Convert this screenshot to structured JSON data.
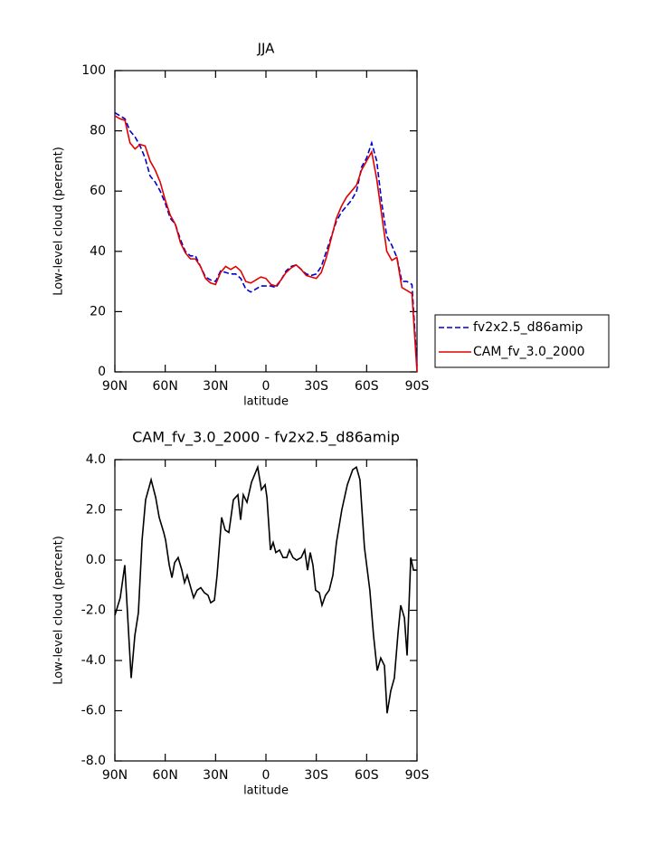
{
  "chart_data": [
    {
      "type": "line",
      "title": "JJA",
      "xlabel": "latitude",
      "ylabel": "Low-level cloud (percent)",
      "x": [
        90,
        87,
        84,
        81,
        78,
        75,
        72,
        69,
        66,
        63,
        60,
        57,
        54,
        51,
        48,
        45,
        42,
        39,
        36,
        33,
        30,
        27,
        24,
        21,
        18,
        15,
        12,
        9,
        6,
        3,
        0,
        -3,
        -6,
        -9,
        -12,
        -15,
        -18,
        -21,
        -24,
        -27,
        -30,
        -33,
        -36,
        -39,
        -42,
        -45,
        -48,
        -51,
        -54,
        -57,
        -60,
        -63,
        -66,
        -69,
        -72,
        -75,
        -78,
        -81,
        -84,
        -87,
        -90
      ],
      "series": [
        {
          "name": "fv2x2.5_d86amip",
          "color": "#0000cc",
          "linestyle": "dashed",
          "values": [
            86,
            85,
            84,
            80,
            78,
            75,
            71,
            65,
            63,
            60,
            56,
            51,
            49,
            44,
            40,
            38.5,
            38.5,
            35,
            31.5,
            30.5,
            30,
            33.5,
            33,
            32.5,
            32.5,
            31,
            27.5,
            26.5,
            27.5,
            28.5,
            28.5,
            28.5,
            28,
            30.5,
            33.5,
            35,
            35.5,
            34,
            32.5,
            32,
            32.5,
            35,
            40,
            45,
            50,
            53,
            55,
            57,
            60,
            68,
            71,
            76,
            70,
            56,
            45,
            42,
            38,
            30,
            30,
            29,
            2
          ]
        },
        {
          "name": "CAM_fv_3.0_2000",
          "color": "#e00000",
          "linestyle": "solid",
          "values": [
            85,
            84,
            83.5,
            76,
            74,
            75.5,
            75,
            70,
            67,
            63,
            57,
            52,
            49,
            43,
            39.5,
            37.5,
            37.5,
            35,
            31,
            29.5,
            29,
            33,
            35,
            34,
            35,
            33.5,
            30,
            29.5,
            30.5,
            31.5,
            31,
            29,
            28.5,
            30.5,
            33,
            34.5,
            35.5,
            34,
            32,
            31.5,
            31,
            33,
            38,
            44.5,
            51,
            55,
            58,
            60,
            62,
            67,
            70,
            73,
            64,
            52,
            40,
            37,
            38,
            28,
            27,
            26,
            0
          ]
        }
      ],
      "xlim": [
        90,
        -90
      ],
      "xticks": [
        {
          "value": 90,
          "label": "90N"
        },
        {
          "value": 60,
          "label": "60N"
        },
        {
          "value": 30,
          "label": "30N"
        },
        0,
        {
          "value": -30,
          "label": "30S"
        },
        {
          "value": -60,
          "label": "60S"
        },
        {
          "value": -90,
          "label": "90S"
        }
      ],
      "ylim": [
        0,
        100
      ],
      "yticks": [
        0,
        20,
        40,
        60,
        80,
        100
      ],
      "legend": "right"
    },
    {
      "type": "line",
      "title": "CAM_fv_3.0_2000 - fv2x2.5_d86amip",
      "xlabel": "latitude",
      "ylabel": "Low-level cloud (percent)",
      "x": [
        90,
        86.8,
        84.1,
        80.3,
        78.1,
        76.0,
        73.8,
        71.7,
        68.4,
        65.7,
        63.6,
        60.9,
        59.8,
        57.6,
        56.0,
        54.4,
        52.3,
        50.1,
        48.5,
        46.9,
        43.1,
        41.0,
        38.8,
        36.7,
        34.5,
        32.9,
        30.7,
        29.1,
        26.4,
        24.3,
        22.1,
        19.4,
        16.7,
        15.1,
        13.5,
        11.3,
        8.6,
        4.9,
        2.7,
        0.5,
        -0.6,
        -2.7,
        -4.3,
        -5.9,
        -8.1,
        -10.2,
        -12.4,
        -14.0,
        -16.1,
        -18.3,
        -21.0,
        -23.1,
        -24.8,
        -26.4,
        -28.0,
        -29.6,
        -31.8,
        -33.4,
        -35.5,
        -37.7,
        -39.9,
        -42.0,
        -45.2,
        -48.5,
        -51.7,
        -53.9,
        -56.0,
        -58.7,
        -61.9,
        -64.1,
        -66.3,
        -68.4,
        -70.6,
        -72.2,
        -74.4,
        -76.5,
        -78.7,
        -80.3,
        -82.5,
        -84.1,
        -86.3,
        -87.9,
        -90
      ],
      "series": [
        {
          "color": "#000000",
          "linestyle": "solid",
          "values": [
            -2.2,
            -1.5,
            -0.2,
            -4.7,
            -3,
            -2.1,
            0.8,
            2.4,
            3.2,
            2.5,
            1.7,
            1.1,
            0.8,
            -0.2,
            -0.7,
            -0.1,
            0.1,
            -0.4,
            -0.9,
            -0.6,
            -1.5,
            -1.2,
            -1.1,
            -1.3,
            -1.4,
            -1.7,
            -1.6,
            -0.6,
            1.7,
            1.2,
            1.1,
            2.4,
            2.6,
            1.6,
            2.6,
            2.3,
            3.1,
            3.7,
            2.8,
            3.0,
            2.5,
            0.4,
            0.7,
            0.3,
            0.4,
            0.1,
            0.1,
            0.4,
            0.1,
            0,
            0.1,
            0.4,
            -0.4,
            0.3,
            -0.2,
            -1.2,
            -1.3,
            -1.8,
            -1.4,
            -1.2,
            -0.6,
            0.7,
            2.0,
            3.0,
            3.6,
            3.7,
            3.2,
            0.5,
            -1.2,
            -3.0,
            -4.4,
            -3.9,
            -4.2,
            -6.1,
            -5.2,
            -4.7,
            -2.9,
            -1.8,
            -2.3,
            -3.8,
            0.1,
            -0.4,
            -0.4
          ]
        }
      ],
      "xlim": [
        90,
        -90
      ],
      "xticks": [
        {
          "value": 90,
          "label": "90N"
        },
        {
          "value": 60,
          "label": "60N"
        },
        {
          "value": 30,
          "label": "30N"
        },
        0,
        {
          "value": -30,
          "label": "30S"
        },
        {
          "value": -60,
          "label": "60S"
        },
        {
          "value": -90,
          "label": "90S"
        }
      ],
      "ylim": [
        -8,
        4
      ],
      "yticks": [
        {
          "value": -8,
          "label": "-8.0"
        },
        {
          "value": -6,
          "label": "-6.0"
        },
        {
          "value": -4,
          "label": "-4.0"
        },
        {
          "value": -2,
          "label": "-2.0"
        },
        {
          "value": 0,
          "label": "0.0"
        },
        {
          "value": 2,
          "label": "2.0"
        },
        {
          "value": 4,
          "label": "4.0"
        }
      ]
    }
  ]
}
